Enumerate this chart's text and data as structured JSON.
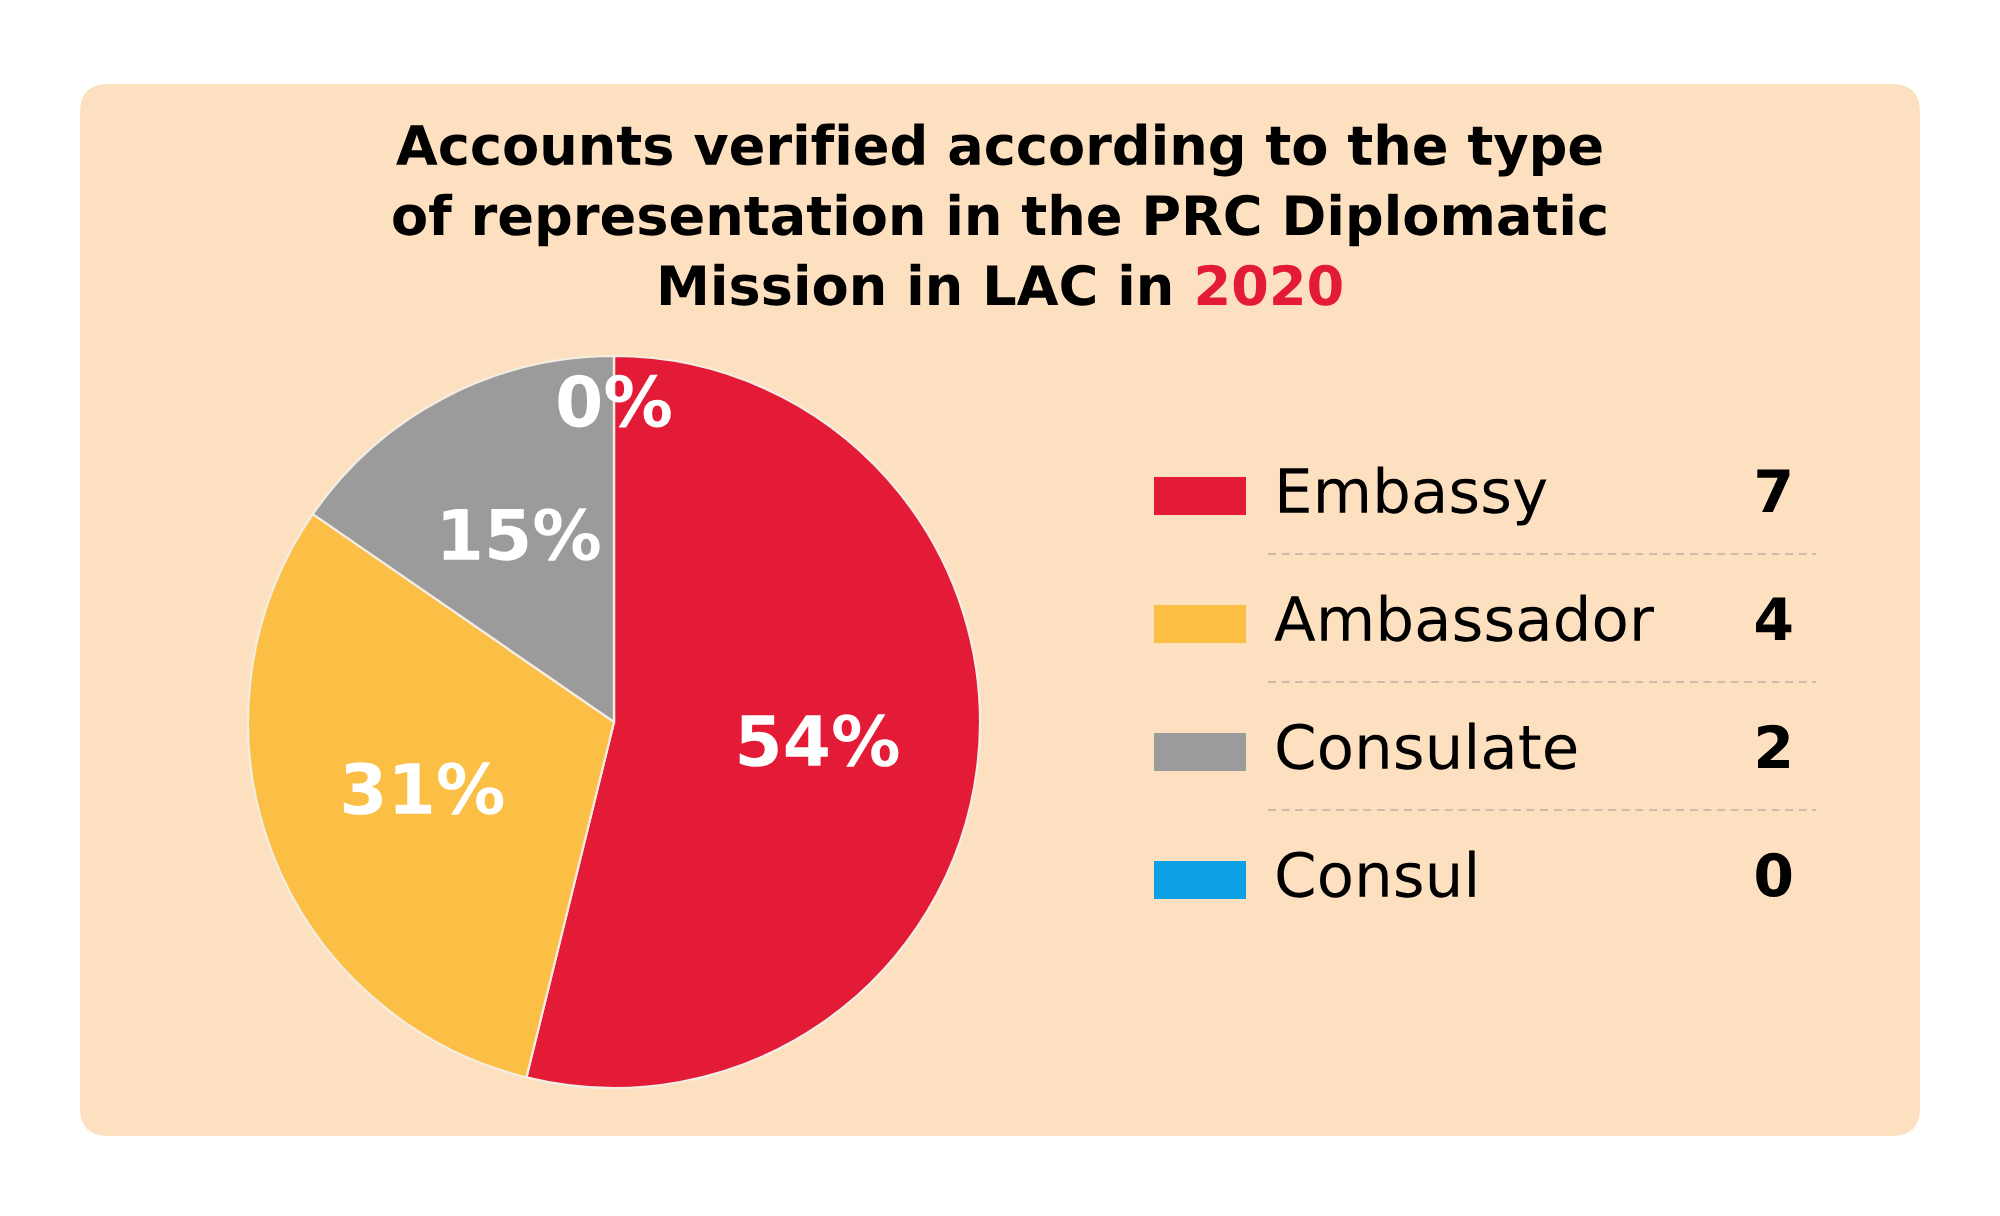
{
  "chart_data": {
    "type": "pie",
    "title": "Accounts verified according to the type of representation in the PRC Diplomatic Mission in LAC in 2020",
    "categories": [
      "Embassy",
      "Ambassador",
      "Consulate",
      "Consul"
    ],
    "values": [
      7,
      4,
      2,
      0
    ],
    "colors": [
      "#e31b37",
      "#fcbf45",
      "#9b9b9b",
      "#0ea0e4"
    ],
    "value_labels": [
      "7",
      "4",
      "2",
      "0"
    ],
    "annotations": [
      {
        "text": "54%",
        "x": "Embassy"
      },
      {
        "text": "31%",
        "x": "Ambassador"
      },
      {
        "text": "15%",
        "x": "Consulate"
      },
      {
        "text": "0%",
        "x": "Consul"
      }
    ],
    "legend": "right"
  }
}
